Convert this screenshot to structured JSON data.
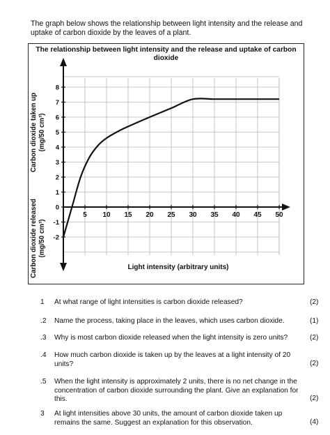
{
  "intro": "The graph below shows the relationship between light intensity and the release and uptake of carbon dioxide by the leaves of a plant.",
  "chart_data": {
    "type": "line",
    "title": "The relationship between light intensity and the release and uptake of carbon dioxide",
    "xlabel": "Light intensity (arbitrary units)",
    "ylabel_up": "Carbon dioxide taken up (mg/50 cm³)",
    "ylabel_down": "Carbon dioxide released (mg/50 cm³)",
    "x_ticks": [
      "5",
      "10",
      "15",
      "20",
      "25",
      "30",
      "35",
      "40",
      "45",
      "50"
    ],
    "y_ticks": [
      "8",
      "7",
      "6",
      "5",
      "4",
      "3",
      "2",
      "1",
      "0",
      "-1",
      "-2"
    ],
    "xlim": [
      0,
      50
    ],
    "ylim": [
      -4,
      9
    ],
    "grid": true,
    "x": [
      0,
      2,
      4,
      6,
      8,
      10,
      13,
      16,
      20,
      25,
      30,
      35,
      40,
      45,
      50
    ],
    "y": [
      -2,
      0,
      2,
      3.3,
      4.1,
      4.6,
      5.1,
      5.5,
      6.0,
      6.6,
      7.2,
      7.2,
      7.2,
      7.2,
      7.2
    ]
  },
  "questions": [
    {
      "num": "1",
      "text": "At what range of light intensities is carbon dioxide released?",
      "marks": "(2)"
    },
    {
      "num": ".2",
      "text": "Name the process, taking place in the leaves, which uses carbon dioxide.",
      "marks": "(1)"
    },
    {
      "num": ".3",
      "text": "Why is most carbon dioxide released when the light intensity is zero units?",
      "marks": "(2)"
    },
    {
      "num": ".4",
      "text": "How much carbon dioxide is taken up by the leaves at a light intensity of 20 units?",
      "marks": "(2)"
    },
    {
      "num": ".5",
      "text": "When the light intensity is approximately 2 units, there is no net change in the concentration of carbon dioxide surrounding the plant. Give an explanation for this.",
      "marks": "(2)"
    },
    {
      "num": "3",
      "text": "At light intensities above 30 units, the amount of carbon dioxide taken up remains the same. Suggest an explanation for this observation.",
      "marks": "(4)"
    }
  ]
}
